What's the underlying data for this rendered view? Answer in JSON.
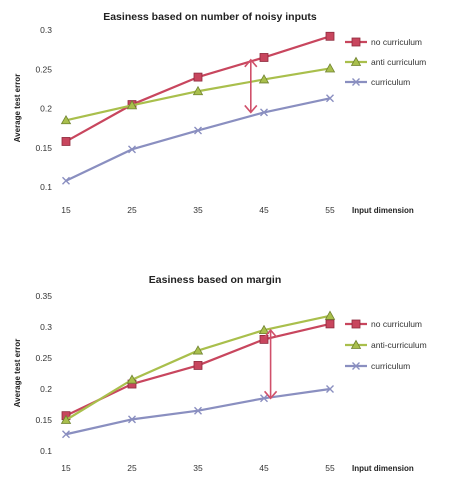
{
  "colors": {
    "no_curriculum": "#c8465e",
    "anti_curriculum": "#a9bf4c",
    "curriculum": "#8a8fc0",
    "annotation": "#d0506a",
    "axis": "#333333"
  },
  "chart_data": [
    {
      "type": "line",
      "title": "Easiness based on number of noisy inputs",
      "xlabel": "Input dimension",
      "ylabel": "Average test error",
      "categories": [
        "15",
        "25",
        "35",
        "45",
        "55"
      ],
      "yticks": [
        "0.1",
        "0.15",
        "0.2",
        "0.25",
        "0.3"
      ],
      "ylim": [
        0.1,
        0.3
      ],
      "legend_position": "right",
      "grid": false,
      "series": [
        {
          "name": "no curriculum",
          "values": [
            0.158,
            0.205,
            0.24,
            0.265,
            0.292
          ],
          "marker": "square",
          "color": "#c8465e"
        },
        {
          "name": "anti curriculum",
          "values": [
            0.185,
            0.204,
            0.222,
            0.237,
            0.251
          ],
          "marker": "triangle",
          "color": "#a9bf4c"
        },
        {
          "name": "curriculum",
          "values": [
            0.108,
            0.148,
            0.172,
            0.195,
            0.213
          ],
          "marker": "x",
          "color": "#8a8fc0"
        }
      ],
      "annotation": {
        "x_value": 43,
        "y_from": 0.262,
        "y_to": 0.195,
        "type": "double-arrow"
      }
    },
    {
      "type": "line",
      "title": "Easiness based on margin",
      "xlabel": "Input dimension",
      "ylabel": "Average test error",
      "categories": [
        "15",
        "25",
        "35",
        "45",
        "55"
      ],
      "yticks": [
        "0.1",
        "0.15",
        "0.2",
        "0.25",
        "0.3",
        "0.35"
      ],
      "ylim": [
        0.1,
        0.35
      ],
      "legend_position": "right",
      "grid": false,
      "series": [
        {
          "name": "no curriculum",
          "values": [
            0.157,
            0.208,
            0.238,
            0.28,
            0.305
          ],
          "marker": "square",
          "color": "#c8465e"
        },
        {
          "name": "anti-curriculum",
          "values": [
            0.15,
            0.215,
            0.262,
            0.295,
            0.318
          ],
          "marker": "triangle",
          "color": "#a9bf4c"
        },
        {
          "name": "curriculum",
          "values": [
            0.127,
            0.151,
            0.165,
            0.185,
            0.2
          ],
          "marker": "x",
          "color": "#8a8fc0"
        }
      ],
      "annotation": {
        "x_value": 46,
        "y_from": 0.295,
        "y_to": 0.185,
        "type": "double-arrow"
      }
    }
  ]
}
